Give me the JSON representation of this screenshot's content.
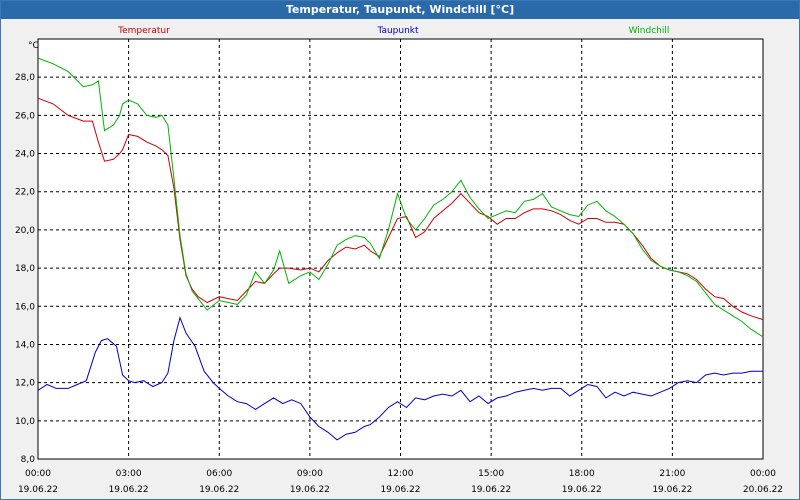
{
  "window": {
    "title": "Temperatur, Taupunkt, Windchill [°C]"
  },
  "chart_data": {
    "type": "line",
    "title": "Temperatur, Taupunkt, Windchill [°C]",
    "ylabel": "°C",
    "ylim": [
      8.0,
      30.0
    ],
    "yticks": [
      "8,0",
      "10,0",
      "12,0",
      "14,0",
      "16,0",
      "18,0",
      "20,0",
      "22,0",
      "24,0",
      "26,0",
      "28,0"
    ],
    "xticks": [
      {
        "time": "00:00",
        "date": "19.06.22"
      },
      {
        "time": "03:00",
        "date": "19.06.22"
      },
      {
        "time": "06:00",
        "date": "19.06.22"
      },
      {
        "time": "09:00",
        "date": "19.06.22"
      },
      {
        "time": "12:00",
        "date": "19.06.22"
      },
      {
        "time": "15:00",
        "date": "19.06.22"
      },
      {
        "time": "18:00",
        "date": "19.06.22"
      },
      {
        "time": "21:00",
        "date": "19.06.22"
      },
      {
        "time": "00:00",
        "date": "20.06.22"
      }
    ],
    "grid": true,
    "legend_position": "top",
    "series": [
      {
        "name": "Temperatur",
        "color": "#d00000",
        "x": [
          0,
          0.5,
          1,
          1.5,
          1.8,
          2,
          2.2,
          2.5,
          2.7,
          2.8,
          3,
          3.3,
          3.6,
          3.9,
          4.1,
          4.3,
          4.5,
          4.7,
          4.9,
          5.1,
          5.3,
          5.6,
          6,
          6.3,
          6.6,
          6.9,
          7.2,
          7.5,
          7.8,
          8,
          8.3,
          8.7,
          9,
          9.3,
          9.6,
          9.9,
          10.2,
          10.5,
          10.8,
          11,
          11.3,
          11.6,
          11.9,
          12.2,
          12.5,
          12.8,
          13.1,
          13.4,
          13.7,
          14,
          14.3,
          14.6,
          14.9,
          15.2,
          15.5,
          15.8,
          16.1,
          16.4,
          16.7,
          17,
          17.3,
          17.6,
          17.9,
          18.2,
          18.5,
          18.8,
          19.1,
          19.4,
          19.7,
          20,
          20.3,
          20.6,
          20.9,
          21.2,
          21.5,
          21.8,
          22.1,
          22.4,
          22.7,
          23,
          23.3,
          23.6,
          24
        ],
        "y": [
          26.9,
          26.6,
          26.0,
          25.7,
          25.7,
          24.6,
          23.6,
          23.7,
          24.0,
          24.2,
          25.0,
          24.9,
          24.6,
          24.4,
          24.2,
          23.9,
          22.2,
          19.5,
          17.6,
          16.9,
          16.5,
          16.2,
          16.5,
          16.4,
          16.3,
          16.8,
          17.3,
          17.2,
          17.7,
          18.0,
          18.0,
          17.9,
          18.0,
          17.8,
          18.4,
          18.8,
          19.1,
          19.0,
          19.2,
          18.9,
          18.6,
          19.6,
          20.6,
          20.7,
          19.6,
          19.9,
          20.6,
          21.0,
          21.4,
          21.9,
          21.4,
          20.9,
          20.7,
          20.3,
          20.6,
          20.6,
          20.9,
          21.1,
          21.1,
          21.0,
          20.8,
          20.5,
          20.3,
          20.6,
          20.6,
          20.4,
          20.4,
          20.3,
          19.8,
          19.2,
          18.5,
          18.1,
          17.9,
          17.8,
          17.7,
          17.4,
          16.9,
          16.5,
          16.4,
          16.0,
          15.7,
          15.5,
          15.3
        ]
      },
      {
        "name": "Taupunkt",
        "color": "#0000c8",
        "x": [
          0,
          0.3,
          0.6,
          1,
          1.3,
          1.6,
          1.9,
          2.1,
          2.3,
          2.6,
          2.8,
          3,
          3.2,
          3.5,
          3.8,
          4.1,
          4.3,
          4.5,
          4.7,
          4.9,
          5.2,
          5.5,
          5.8,
          6,
          6.3,
          6.6,
          6.9,
          7.2,
          7.5,
          7.8,
          8.1,
          8.4,
          8.7,
          9,
          9.3,
          9.6,
          9.9,
          10.2,
          10.5,
          10.8,
          11,
          11.3,
          11.6,
          11.9,
          12.2,
          12.5,
          12.8,
          13.1,
          13.4,
          13.7,
          14,
          14.3,
          14.6,
          14.9,
          15.2,
          15.5,
          15.8,
          16.1,
          16.4,
          16.7,
          17,
          17.3,
          17.6,
          17.9,
          18.2,
          18.5,
          18.8,
          19.1,
          19.4,
          19.7,
          20,
          20.3,
          20.6,
          20.9,
          21.2,
          21.5,
          21.8,
          22.1,
          22.4,
          22.7,
          23,
          23.3,
          23.6,
          24
        ],
        "y": [
          11.6,
          11.9,
          11.7,
          11.7,
          11.9,
          12.1,
          13.6,
          14.2,
          14.3,
          13.9,
          12.4,
          12.1,
          12.0,
          12.1,
          11.8,
          12.0,
          12.5,
          14.2,
          15.4,
          14.6,
          13.9,
          12.6,
          12.0,
          11.7,
          11.3,
          11.0,
          10.9,
          10.6,
          10.9,
          11.2,
          10.9,
          11.1,
          10.9,
          10.2,
          9.7,
          9.4,
          9.0,
          9.3,
          9.4,
          9.7,
          9.8,
          10.2,
          10.7,
          11.0,
          10.7,
          11.2,
          11.1,
          11.3,
          11.4,
          11.3,
          11.6,
          11.0,
          11.3,
          10.9,
          11.2,
          11.3,
          11.5,
          11.6,
          11.7,
          11.6,
          11.7,
          11.7,
          11.3,
          11.6,
          11.9,
          11.8,
          11.2,
          11.5,
          11.3,
          11.5,
          11.4,
          11.3,
          11.5,
          11.7,
          12.0,
          12.1,
          12.0,
          12.4,
          12.5,
          12.4,
          12.5,
          12.5,
          12.6,
          12.6
        ]
      },
      {
        "name": "Windchill",
        "color": "#00b400",
        "x": [
          0,
          0.5,
          1,
          1.5,
          1.8,
          2,
          2.2,
          2.5,
          2.7,
          2.8,
          3,
          3.3,
          3.6,
          3.9,
          4.1,
          4.3,
          4.5,
          4.7,
          4.9,
          5.1,
          5.3,
          5.6,
          6,
          6.3,
          6.6,
          6.9,
          7.2,
          7.5,
          7.8,
          8,
          8.3,
          8.7,
          9,
          9.3,
          9.6,
          9.9,
          10.2,
          10.5,
          10.8,
          11,
          11.3,
          11.6,
          11.9,
          12.2,
          12.5,
          12.8,
          13.1,
          13.4,
          13.7,
          14,
          14.3,
          14.6,
          14.9,
          15.2,
          15.5,
          15.8,
          16.1,
          16.4,
          16.7,
          17,
          17.3,
          17.6,
          17.9,
          18.2,
          18.5,
          18.8,
          19.1,
          19.4,
          19.7,
          20,
          20.3,
          20.6,
          20.9,
          21.2,
          21.5,
          21.8,
          22.1,
          22.4,
          22.7,
          23,
          23.3,
          23.6,
          24
        ],
        "y": [
          29.0,
          28.7,
          28.3,
          27.5,
          27.6,
          27.8,
          25.2,
          25.5,
          26.0,
          26.6,
          26.8,
          26.6,
          26.0,
          25.9,
          26.0,
          25.5,
          22.7,
          19.7,
          17.7,
          16.8,
          16.4,
          15.8,
          16.3,
          16.2,
          16.1,
          16.6,
          17.8,
          17.2,
          17.9,
          18.9,
          17.2,
          17.6,
          17.8,
          17.4,
          18.2,
          19.2,
          19.5,
          19.7,
          19.6,
          19.3,
          18.5,
          20.0,
          21.9,
          20.6,
          20.0,
          20.6,
          21.3,
          21.6,
          22.0,
          22.6,
          21.7,
          21.1,
          20.6,
          20.8,
          21.0,
          20.9,
          21.5,
          21.6,
          21.9,
          21.2,
          21.0,
          20.8,
          20.7,
          21.3,
          21.5,
          21.0,
          20.7,
          20.3,
          19.8,
          19.0,
          18.4,
          18.1,
          17.9,
          17.8,
          17.6,
          17.3,
          16.7,
          16.1,
          15.8,
          15.5,
          15.2,
          14.8,
          14.4
        ]
      }
    ]
  }
}
